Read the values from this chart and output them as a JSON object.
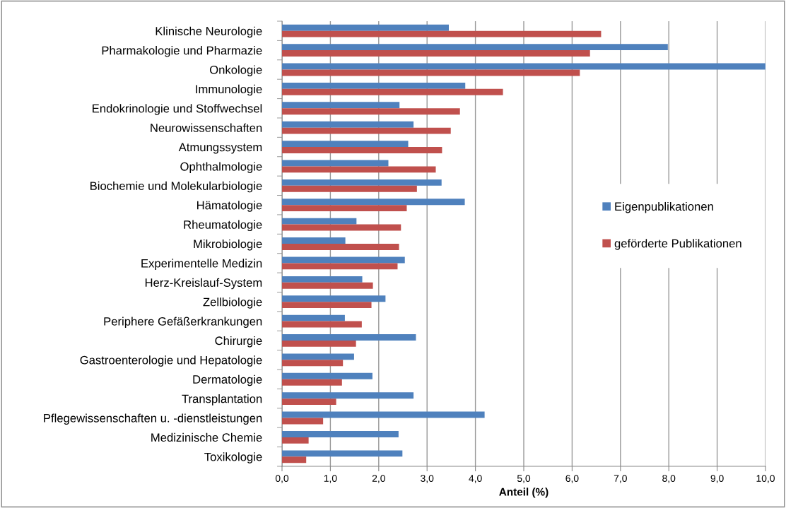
{
  "chart_data": {
    "type": "bar",
    "orientation": "horizontal",
    "xlabel": "Anteil (%)",
    "categories": [
      "Klinische Neurologie",
      "Pharmakologie und Pharmazie",
      "Onkologie",
      "Immunologie",
      "Endokrinologie und Stoffwechsel",
      "Neurowissenschaften",
      "Atmungssystem",
      "Ophthalmologie",
      "Biochemie und Molekularbiologie",
      "Hämatologie",
      "Rheumatologie",
      "Mikrobiologie",
      "Experimentelle Medizin",
      "Herz-Kreislauf-System",
      "Zellbiologie",
      "Periphere Gefäßerkrankungen",
      "Chirurgie",
      "Gastroenterologie und Hepatologie",
      "Dermatologie",
      "Transplantation",
      "Pflegewissenschaften u. -dienstleistungen",
      "Medizinische Chemie",
      "Toxikologie"
    ],
    "series": [
      {
        "name": "Eigenpublikationen",
        "color": "#4f81bd",
        "values": [
          3.45,
          7.98,
          10.0,
          3.79,
          2.43,
          2.72,
          2.61,
          2.2,
          3.3,
          3.78,
          1.54,
          1.31,
          2.54,
          1.66,
          2.14,
          1.3,
          2.77,
          1.49,
          1.87,
          2.72,
          4.19,
          2.41,
          2.49
        ]
      },
      {
        "name": "geförderte Publikationen",
        "color": "#c0504d",
        "values": [
          6.6,
          6.37,
          6.16,
          4.57,
          3.68,
          3.49,
          3.31,
          3.18,
          2.79,
          2.58,
          2.46,
          2.42,
          2.39,
          1.88,
          1.85,
          1.65,
          1.53,
          1.26,
          1.24,
          1.12,
          0.85,
          0.55,
          0.5
        ]
      }
    ],
    "xlim": [
      0,
      10
    ],
    "xticks": [
      {
        "value": 0,
        "label": "0,0"
      },
      {
        "value": 1,
        "label": "1,0"
      },
      {
        "value": 2,
        "label": "2,0"
      },
      {
        "value": 3,
        "label": "3,0"
      },
      {
        "value": 4,
        "label": "4,0"
      },
      {
        "value": 5,
        "label": "5,0"
      },
      {
        "value": 6,
        "label": "6,0"
      },
      {
        "value": 7,
        "label": "7,0"
      },
      {
        "value": 8,
        "label": "8,0"
      },
      {
        "value": 9,
        "label": "9,0"
      },
      {
        "value": 10,
        "label": "10,0"
      }
    ],
    "grid": "x",
    "legend": "right"
  }
}
